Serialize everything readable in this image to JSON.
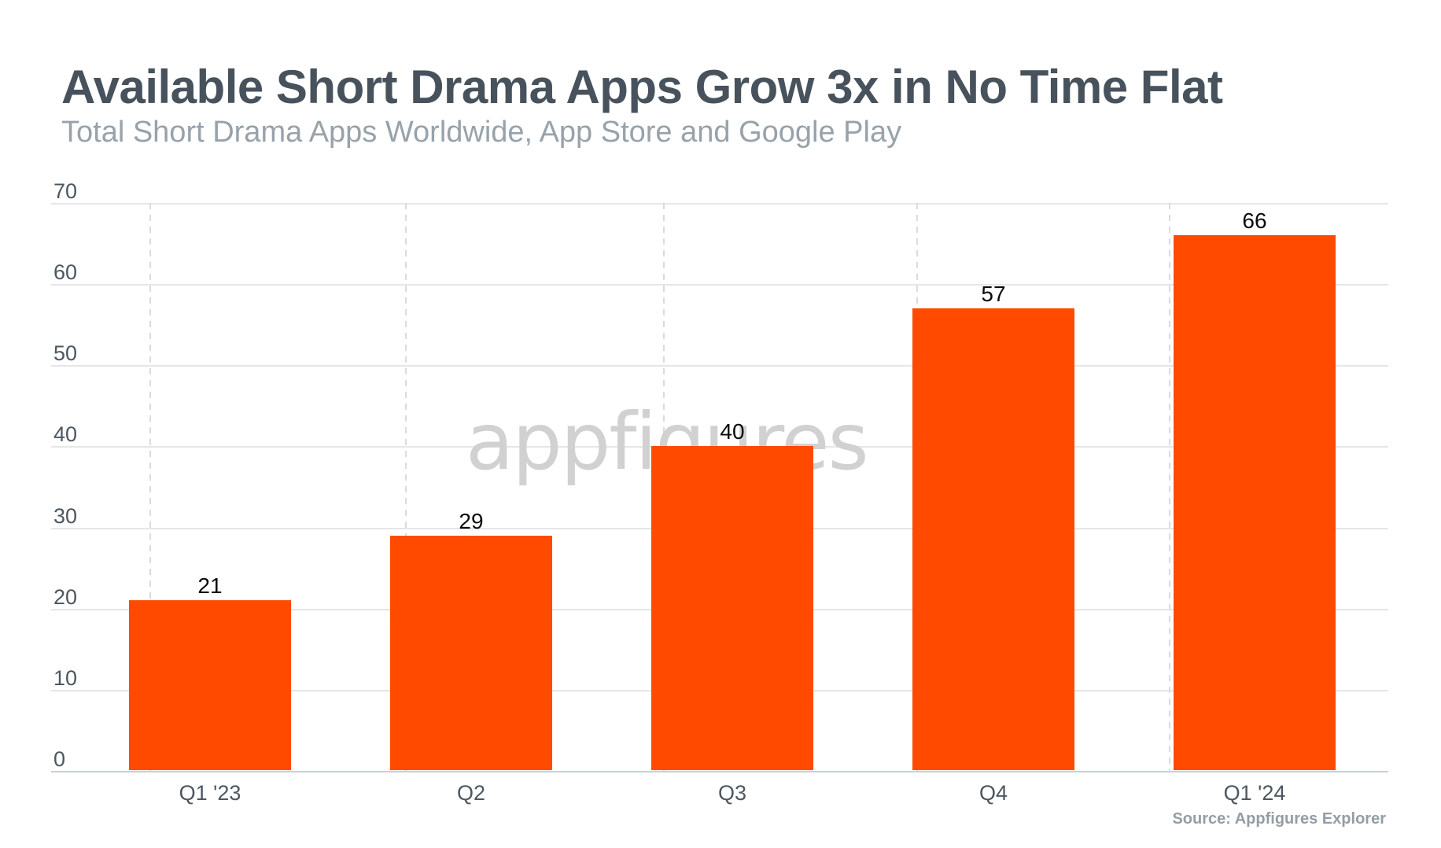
{
  "header": {
    "title": "Available Short Drama Apps Grow 3x in No Time Flat",
    "subtitle": "Total Short Drama Apps Worldwide, App Store and Google Play"
  },
  "watermark_text": "appfigures",
  "source_note": "Source: Appfigures Explorer",
  "chart_data": {
    "type": "bar",
    "title": "Available Short Drama Apps Grow 3x in No Time Flat",
    "subtitle": "Total Short Drama Apps Worldwide, App Store and Google Play",
    "categories": [
      "Q1 '23",
      "Q2",
      "Q3",
      "Q4",
      "Q1 '24"
    ],
    "values": [
      21,
      29,
      40,
      57,
      66
    ],
    "value_labels": [
      "21",
      "29",
      "40",
      "57",
      "66"
    ],
    "xlabel": "",
    "ylabel": "",
    "ylim": [
      0,
      70
    ],
    "yticks": [
      0,
      10,
      20,
      30,
      40,
      50,
      60,
      70
    ],
    "grid": true,
    "vertical_gridlines": "dashed",
    "legend": false,
    "bar_color": "#FF4A00"
  },
  "colors": {
    "bar": "#FF4A00",
    "title": "#47525C",
    "subtitle": "#98A2AA",
    "axis_labels": "#4C5760",
    "gridline": "#E4E6E7",
    "watermark": "#D1D1D1",
    "source": "#949DA5",
    "background": "#FFFFFF"
  }
}
